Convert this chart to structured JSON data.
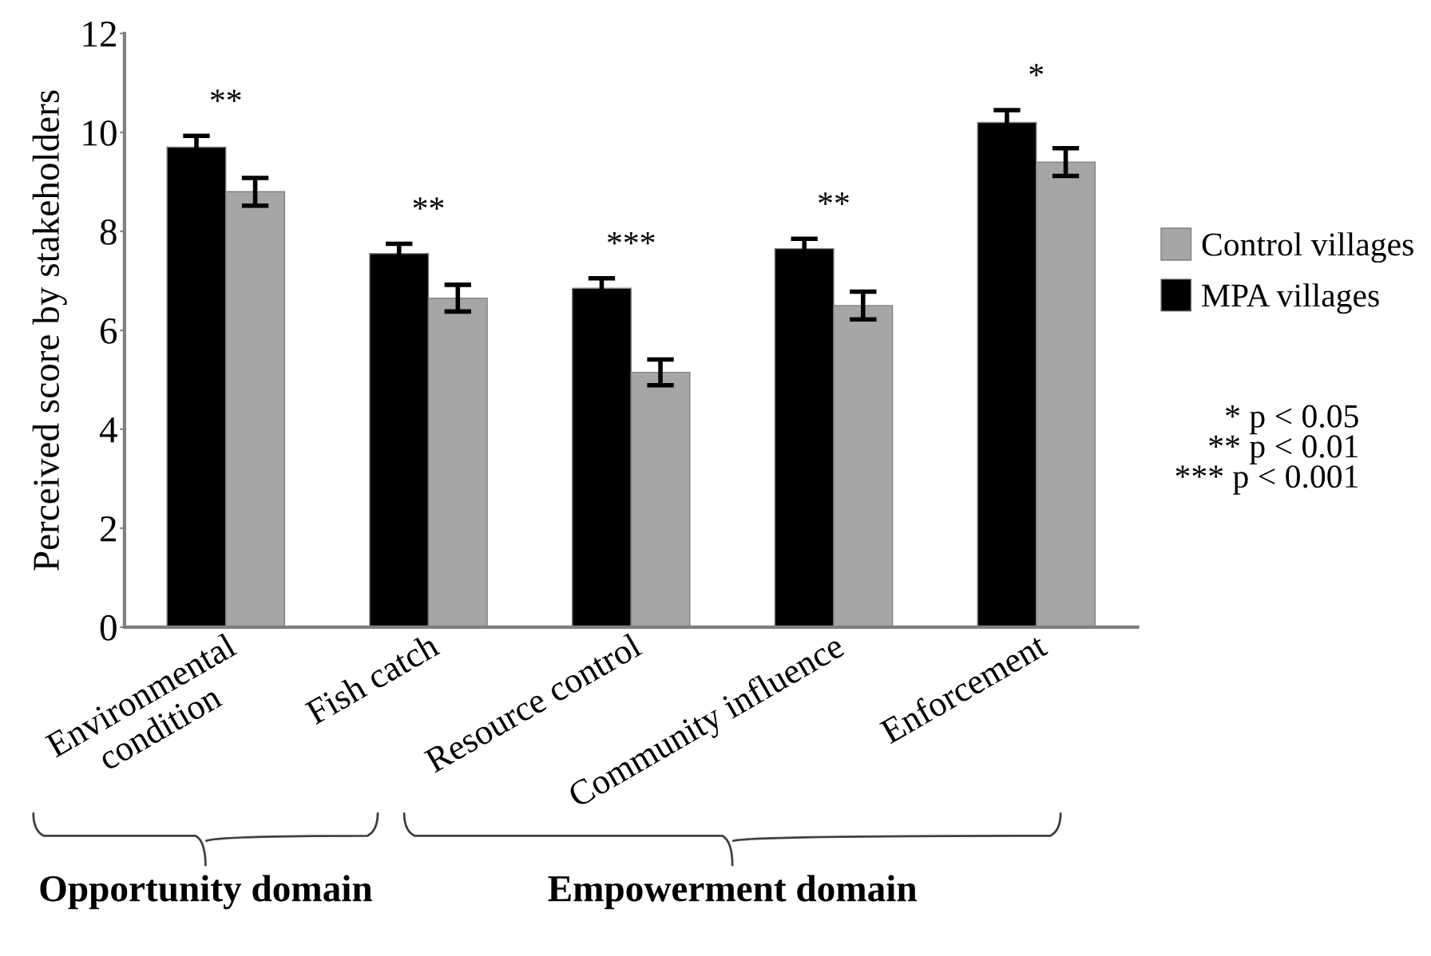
{
  "chart_data": {
    "type": "bar",
    "ylabel": "Perceived score by stakeholders",
    "categories": [
      "Environmental\ncondition",
      "Fish catch",
      "Resource control",
      "Community influence",
      "Enforcement"
    ],
    "series": [
      {
        "name": "MPA villages",
        "color": "#000000",
        "values": [
          9.7,
          7.55,
          6.85,
          7.65,
          10.2
        ],
        "errors": [
          0.23,
          0.2,
          0.2,
          0.2,
          0.25
        ]
      },
      {
        "name": "Control villages",
        "color": "#a6a6a6",
        "values": [
          8.8,
          6.65,
          5.15,
          6.5,
          9.4
        ],
        "errors": [
          0.28,
          0.27,
          0.26,
          0.28,
          0.28
        ]
      }
    ],
    "ylim": [
      0,
      12
    ],
    "yticks": [
      0,
      2,
      4,
      6,
      8,
      10,
      12
    ],
    "grid": false,
    "legend": "right",
    "annotations": [
      "**",
      "**",
      "***",
      "**",
      "*",
      "* p < 0.05\n** p < 0.01\n*** p < 0.001",
      "Opportunity domain",
      "Empowerment domain"
    ]
  }
}
